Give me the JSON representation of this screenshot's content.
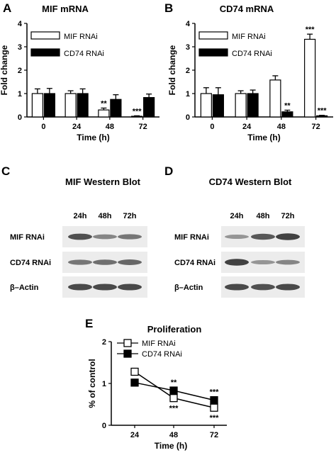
{
  "panels": {
    "A": {
      "letter": "A"
    },
    "B": {
      "letter": "B"
    },
    "C": {
      "letter": "C",
      "title": "MIF Western Blot",
      "lanes": [
        "24h",
        "48h",
        "72h"
      ],
      "rows": [
        "MIF RNAi",
        "CD74 RNAi",
        "β–Actin"
      ]
    },
    "D": {
      "letter": "D",
      "title": "CD74 Western Blot",
      "lanes": [
        "24h",
        "48h",
        "72h"
      ],
      "rows": [
        "MIF RNAi",
        "CD74 RNAi",
        "β–Actin"
      ]
    },
    "E": {
      "letter": "E"
    }
  },
  "blot_intensity": {
    "C": [
      [
        0.8,
        0.45,
        0.55
      ],
      [
        0.55,
        0.6,
        0.65
      ],
      [
        0.85,
        0.85,
        0.85
      ]
    ],
    "D": [
      [
        0.35,
        0.75,
        0.9
      ],
      [
        0.9,
        0.35,
        0.45
      ],
      [
        0.85,
        0.8,
        0.85
      ]
    ]
  },
  "chart_data": [
    {
      "id": "A",
      "type": "bar",
      "title": "MIF mRNA",
      "xlabel": "Time (h)",
      "ylabel": "Fold change",
      "categories": [
        "0",
        "24",
        "48",
        "72"
      ],
      "ylim": [
        0,
        4
      ],
      "yticks": [
        "0",
        "1",
        "2",
        "3",
        "4"
      ],
      "legend": "top-left",
      "series": [
        {
          "name": "MIF RNAi",
          "fill": "#ffffff",
          "values": [
            1.0,
            1.0,
            0.3,
            0.03
          ],
          "errors": [
            0.2,
            0.12,
            0.08,
            0.02
          ]
        },
        {
          "name": "CD74 RNAi",
          "fill": "#000000",
          "values": [
            1.0,
            1.0,
            0.75,
            0.83
          ],
          "errors": [
            0.22,
            0.2,
            0.2,
            0.15
          ]
        }
      ],
      "annotations": [
        {
          "series": 0,
          "index": 2,
          "text": "**"
        },
        {
          "series": 0,
          "index": 3,
          "text": "***"
        }
      ]
    },
    {
      "id": "B",
      "type": "bar",
      "title": "CD74 mRNA",
      "xlabel": "Time (h)",
      "ylabel": "Fold change",
      "categories": [
        "0",
        "24",
        "48",
        "72"
      ],
      "ylim": [
        0,
        4
      ],
      "yticks": [
        "0",
        "1",
        "2",
        "3",
        "4"
      ],
      "legend": "top-left",
      "series": [
        {
          "name": "MIF RNAi",
          "fill": "#ffffff",
          "values": [
            1.0,
            1.0,
            1.58,
            3.32
          ],
          "errors": [
            0.25,
            0.12,
            0.18,
            0.22
          ]
        },
        {
          "name": "CD74 RNAi",
          "fill": "#000000",
          "values": [
            0.95,
            1.0,
            0.22,
            0.05
          ],
          "errors": [
            0.3,
            0.15,
            0.07,
            0.02
          ]
        }
      ],
      "annotations": [
        {
          "series": 0,
          "index": 3,
          "text": "***"
        },
        {
          "series": 1,
          "index": 2,
          "text": "**"
        },
        {
          "series": 1,
          "index": 3,
          "text": "***"
        }
      ]
    },
    {
      "id": "E",
      "type": "line",
      "title": "Proliferation",
      "xlabel": "Time (h)",
      "ylabel": "% of control",
      "x": [
        "24",
        "48",
        "72"
      ],
      "ylim": [
        0,
        2
      ],
      "yticks": [
        "0",
        "1",
        "2"
      ],
      "legend": "top-left",
      "series": [
        {
          "name": "MIF RNAi",
          "marker": "open-square",
          "values": [
            1.28,
            0.65,
            0.42
          ]
        },
        {
          "name": "CD74 RNAi",
          "marker": "filled-square",
          "values": [
            1.02,
            0.83,
            0.6
          ]
        }
      ],
      "annotations": [
        {
          "series": 1,
          "index": 1,
          "text": "**",
          "pos": "above"
        },
        {
          "series": 0,
          "index": 1,
          "text": "***",
          "pos": "below"
        },
        {
          "series": 1,
          "index": 2,
          "text": "***",
          "pos": "above"
        },
        {
          "series": 0,
          "index": 2,
          "text": "***",
          "pos": "below"
        }
      ]
    }
  ]
}
